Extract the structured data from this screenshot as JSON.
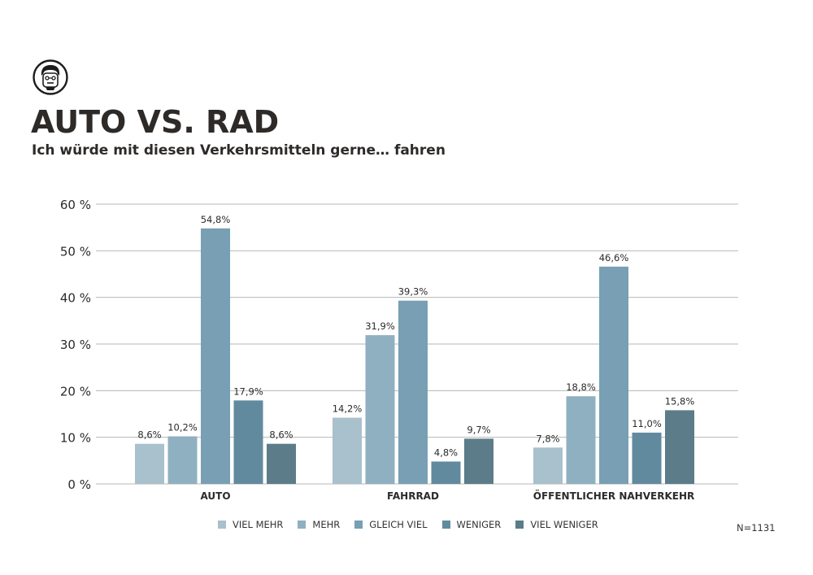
{
  "header": {
    "title": "AUTO VS. RAD",
    "subtitle": "Ich würde mit diesen Verkehrsmitteln gerne… fahren",
    "logo_icon": "face-mascot-icon"
  },
  "footnote": "N=1131",
  "colors": {
    "viel_mehr": "#a9c0cd",
    "mehr": "#8fb0c0",
    "gleich_viel": "#789fb3",
    "weniger": "#628a9e",
    "viel_weniger": "#5b7c88",
    "grid": "#b7b7b7",
    "text": "#2b2b2b"
  },
  "chart_data": {
    "type": "bar",
    "categories": [
      "AUTO",
      "FAHRRAD",
      "ÖFFENTLICHER NAHVERKEHR"
    ],
    "ylim": [
      0,
      60
    ],
    "yticks": [
      0,
      10,
      20,
      30,
      40,
      50,
      60
    ],
    "ytick_labels": [
      "0 %",
      "10 %",
      "20 %",
      "30 %",
      "40 %",
      "50 %",
      "60 %"
    ],
    "grid": true,
    "legend_position": "bottom",
    "series": [
      {
        "name": "VIEL MEHR",
        "values": [
          8.6,
          14.2,
          7.8
        ],
        "labels": [
          "8,6%",
          "14,2%",
          "7,8%"
        ]
      },
      {
        "name": "MEHR",
        "values": [
          10.2,
          31.9,
          18.8
        ],
        "labels": [
          "10,2%",
          "31,9%",
          "18,8%"
        ]
      },
      {
        "name": "GLEICH VIEL",
        "values": [
          54.8,
          39.3,
          46.6
        ],
        "labels": [
          "54,8%",
          "39,3%",
          "46,6%"
        ]
      },
      {
        "name": "WENIGER",
        "values": [
          17.9,
          4.8,
          11.0
        ],
        "labels": [
          "17,9%",
          "4,8%",
          "11,0%"
        ]
      },
      {
        "name": "VIEL WENIGER",
        "values": [
          8.6,
          9.7,
          15.8
        ],
        "labels": [
          "8,6%",
          "9,7%",
          "15,8%"
        ]
      }
    ]
  }
}
